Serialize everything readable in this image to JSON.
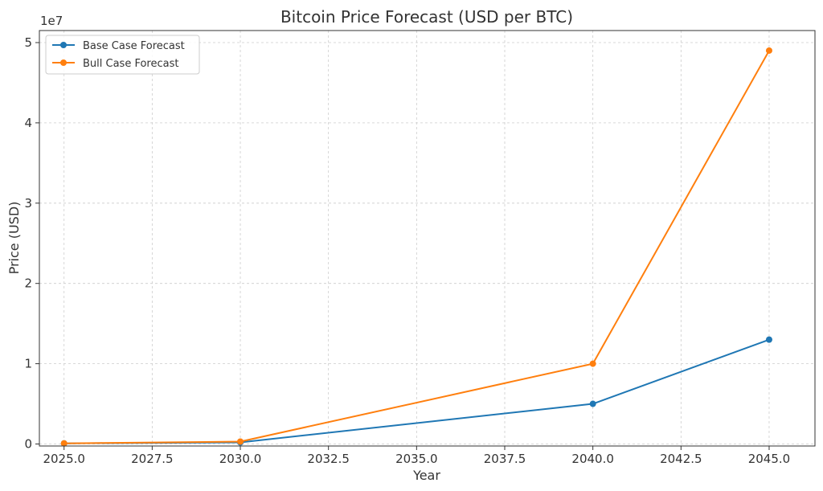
{
  "chart_data": {
    "type": "line",
    "title": "Bitcoin Price Forecast (USD per BTC)",
    "xlabel": "Year",
    "ylabel": "Price (USD)",
    "y_offset_label": "1e7",
    "xlim": [
      2024.3,
      2046.3
    ],
    "ylim": [
      -250000,
      51500000
    ],
    "x_ticks": [
      2025.0,
      2027.5,
      2030.0,
      2032.5,
      2035.0,
      2037.5,
      2040.0,
      2042.5,
      2045.0
    ],
    "x_tick_labels": [
      "2025.0",
      "2027.5",
      "2030.0",
      "2032.5",
      "2035.0",
      "2037.5",
      "2040.0",
      "2042.5",
      "2045.0"
    ],
    "y_ticks": [
      0,
      10000000,
      20000000,
      30000000,
      40000000,
      50000000
    ],
    "y_tick_labels": [
      "0",
      "1",
      "2",
      "3",
      "4",
      "5"
    ],
    "grid": true,
    "legend_position": "top-left",
    "x": [
      2025,
      2030,
      2040,
      2045
    ],
    "series": [
      {
        "name": "Base Case Forecast",
        "color": "#1f77b4",
        "values": [
          80000,
          200000,
          5000000,
          13000000
        ]
      },
      {
        "name": "Bull Case Forecast",
        "color": "#ff7f0e",
        "values": [
          80000,
          300000,
          10000000,
          49000000
        ]
      }
    ]
  }
}
